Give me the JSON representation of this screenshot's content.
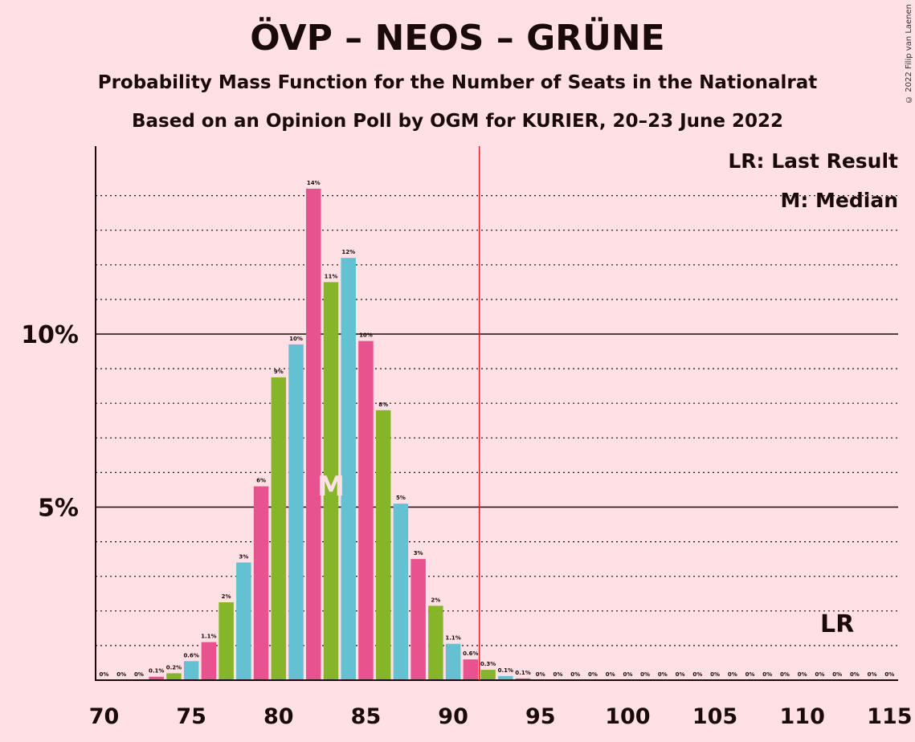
{
  "title": "ÖVP – NEOS – GRÜNE",
  "subtitle1": "Probability Mass Function for the Number of Seats in the Nationalrat",
  "subtitle2": "Based on an Opinion Poll by OGM for KURIER, 20–23 June 2022",
  "copyright": "© 2022 Filip van Laenen",
  "legend": {
    "lr": "LR: Last Result",
    "median": "M: Median"
  },
  "markers": {
    "median_label": "M",
    "lr_label": "LR",
    "median_seat": 83,
    "last_result_seat": 112,
    "majority_line_seat": 92
  },
  "colors": {
    "background": "#ffe1e5",
    "pink": "#e8528f",
    "green": "#86b52a",
    "blue": "#64c1d2",
    "majority_line": "#e02020"
  },
  "chart_data": {
    "type": "bar",
    "xlim": [
      70,
      115
    ],
    "ylim": [
      0,
      15
    ],
    "x_ticks": [
      "70",
      "75",
      "80",
      "85",
      "90",
      "95",
      "100",
      "105",
      "110",
      "115"
    ],
    "y_ticks": [
      {
        "value": 5,
        "label": "5%"
      },
      {
        "value": 10,
        "label": "10%"
      }
    ],
    "grid": "dotted lines every 1%",
    "legend_position": "top-right",
    "bars": [
      {
        "seats": 70,
        "value": 0,
        "label": "0%",
        "color": "pink"
      },
      {
        "seats": 71,
        "value": 0,
        "label": "0%",
        "color": "green"
      },
      {
        "seats": 72,
        "value": 0,
        "label": "0%",
        "color": "blue"
      },
      {
        "seats": 73,
        "value": 0.1,
        "label": "0.1%",
        "color": "pink"
      },
      {
        "seats": 74,
        "value": 0.2,
        "label": "0.2%",
        "color": "green"
      },
      {
        "seats": 75,
        "value": 0.55,
        "label": "0.6%",
        "color": "blue"
      },
      {
        "seats": 76,
        "value": 1.1,
        "label": "1.1%",
        "color": "pink"
      },
      {
        "seats": 77,
        "value": 2.25,
        "label": "2%",
        "color": "green"
      },
      {
        "seats": 78,
        "value": 3.4,
        "label": "3%",
        "color": "blue"
      },
      {
        "seats": 79,
        "value": 5.6,
        "label": "6%",
        "color": "pink"
      },
      {
        "seats": 80,
        "value": 8.75,
        "label": "9%",
        "color": "green"
      },
      {
        "seats": 81,
        "value": 9.7,
        "label": "10%",
        "color": "blue"
      },
      {
        "seats": 82,
        "value": 14.2,
        "label": "14%",
        "color": "pink"
      },
      {
        "seats": 83,
        "value": 11.5,
        "label": "11%",
        "color": "green"
      },
      {
        "seats": 84,
        "value": 12.2,
        "label": "12%",
        "color": "blue"
      },
      {
        "seats": 85,
        "value": 9.8,
        "label": "10%",
        "color": "pink"
      },
      {
        "seats": 86,
        "value": 7.8,
        "label": "8%",
        "color": "green"
      },
      {
        "seats": 87,
        "value": 5.1,
        "label": "5%",
        "color": "blue"
      },
      {
        "seats": 88,
        "value": 3.5,
        "label": "3%",
        "color": "pink"
      },
      {
        "seats": 89,
        "value": 2.15,
        "label": "2%",
        "color": "green"
      },
      {
        "seats": 90,
        "value": 1.05,
        "label": "1.1%",
        "color": "blue"
      },
      {
        "seats": 91,
        "value": 0.6,
        "label": "0.6%",
        "color": "pink"
      },
      {
        "seats": 92,
        "value": 0.3,
        "label": "0.3%",
        "color": "green"
      },
      {
        "seats": 93,
        "value": 0.12,
        "label": "0.1%",
        "color": "blue"
      },
      {
        "seats": 94,
        "value": 0.05,
        "label": "0.1%",
        "color": "pink"
      },
      {
        "seats": 95,
        "value": 0,
        "label": "0%",
        "color": "green"
      },
      {
        "seats": 96,
        "value": 0,
        "label": "0%",
        "color": "blue"
      },
      {
        "seats": 97,
        "value": 0,
        "label": "0%",
        "color": "pink"
      },
      {
        "seats": 98,
        "value": 0,
        "label": "0%",
        "color": "green"
      },
      {
        "seats": 99,
        "value": 0,
        "label": "0%",
        "color": "blue"
      },
      {
        "seats": 100,
        "value": 0,
        "label": "0%",
        "color": "pink"
      },
      {
        "seats": 101,
        "value": 0,
        "label": "0%",
        "color": "green"
      },
      {
        "seats": 102,
        "value": 0,
        "label": "0%",
        "color": "blue"
      },
      {
        "seats": 103,
        "value": 0,
        "label": "0%",
        "color": "pink"
      },
      {
        "seats": 104,
        "value": 0,
        "label": "0%",
        "color": "green"
      },
      {
        "seats": 105,
        "value": 0,
        "label": "0%",
        "color": "blue"
      },
      {
        "seats": 106,
        "value": 0,
        "label": "0%",
        "color": "pink"
      },
      {
        "seats": 107,
        "value": 0,
        "label": "0%",
        "color": "green"
      },
      {
        "seats": 108,
        "value": 0,
        "label": "0%",
        "color": "blue"
      },
      {
        "seats": 109,
        "value": 0,
        "label": "0%",
        "color": "pink"
      },
      {
        "seats": 110,
        "value": 0,
        "label": "0%",
        "color": "green"
      },
      {
        "seats": 111,
        "value": 0,
        "label": "0%",
        "color": "blue"
      },
      {
        "seats": 112,
        "value": 0,
        "label": "0%",
        "color": "pink"
      },
      {
        "seats": 113,
        "value": 0,
        "label": "0%",
        "color": "green"
      },
      {
        "seats": 114,
        "value": 0,
        "label": "0%",
        "color": "blue"
      },
      {
        "seats": 115,
        "value": 0,
        "label": "0%",
        "color": "pink"
      }
    ]
  }
}
